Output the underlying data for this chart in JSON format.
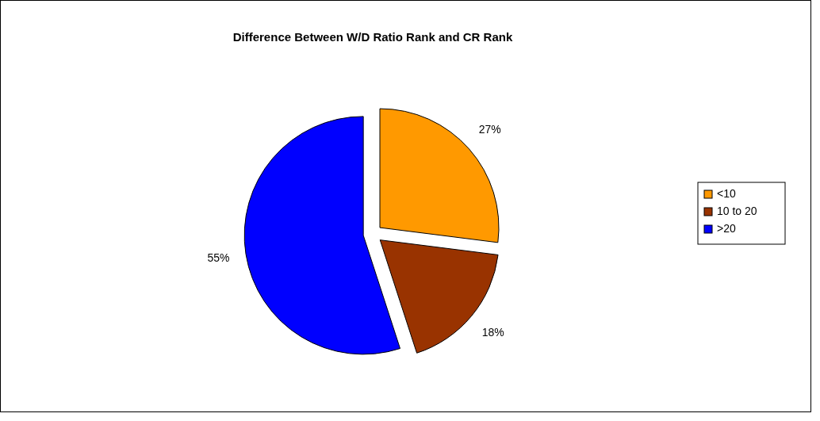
{
  "chart_data": {
    "type": "pie",
    "title": "Difference Between W/D Ratio Rank and CR Rank",
    "categories": [
      "<10",
      "10 to 20",
      ">20"
    ],
    "values": [
      27,
      18,
      55
    ],
    "value_labels": [
      "27%",
      "18%",
      "55%"
    ],
    "colors": [
      "#ff9900",
      "#993300",
      "#0000ff"
    ],
    "legend": "right"
  }
}
